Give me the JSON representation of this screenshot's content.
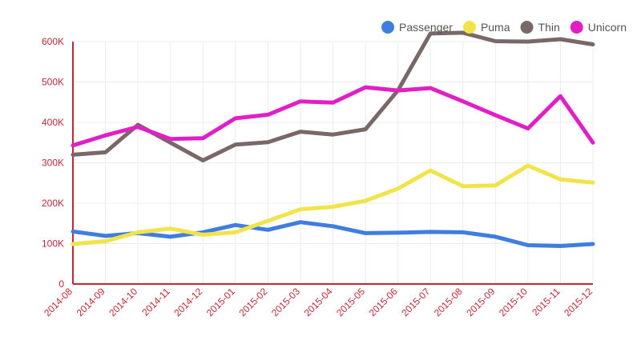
{
  "chart_data": {
    "type": "line",
    "title": "",
    "xlabel": "",
    "ylabel": "",
    "ylim": [
      0,
      600000
    ],
    "ytick_values": [
      0,
      100000,
      200000,
      300000,
      400000,
      500000,
      600000
    ],
    "ytick_labels": [
      "0",
      "100K",
      "200K",
      "300K",
      "400K",
      "500K",
      "600K"
    ],
    "categories": [
      "2014-08",
      "2014-09",
      "2014-10",
      "2014-11",
      "2014-12",
      "2015-01",
      "2015-02",
      "2015-03",
      "2015-04",
      "2015-05",
      "2015-06",
      "2015-07",
      "2015-08",
      "2015-09",
      "2015-10",
      "2015-11",
      "2015-12"
    ],
    "legend_position": "top-right",
    "grid": true,
    "series": [
      {
        "name": "Passenger",
        "color": "#3f7de0",
        "values": [
          130000,
          119000,
          126000,
          117000,
          128000,
          146000,
          134000,
          153000,
          143000,
          126000,
          127000,
          129000,
          128000,
          117000,
          96000,
          94000,
          99000
        ]
      },
      {
        "name": "Puma",
        "color": "#f0e44a",
        "values": [
          99000,
          106000,
          128000,
          137000,
          122000,
          128000,
          156000,
          185000,
          191000,
          206000,
          236000,
          281000,
          242000,
          244000,
          293000,
          259000,
          251000
        ]
      },
      {
        "name": "Thin",
        "color": "#7a6868",
        "values": [
          320000,
          326000,
          394000,
          350000,
          306000,
          345000,
          351000,
          377000,
          370000,
          383000,
          479000,
          620000,
          622000,
          601000,
          600000,
          606000,
          593000
        ]
      },
      {
        "name": "Unicorn",
        "color": "#e020c4",
        "values": [
          343000,
          368000,
          389000,
          359000,
          361000,
          410000,
          419000,
          452000,
          449000,
          487000,
          479000,
          485000,
          452000,
          418000,
          385000,
          465000,
          350000
        ]
      }
    ]
  }
}
